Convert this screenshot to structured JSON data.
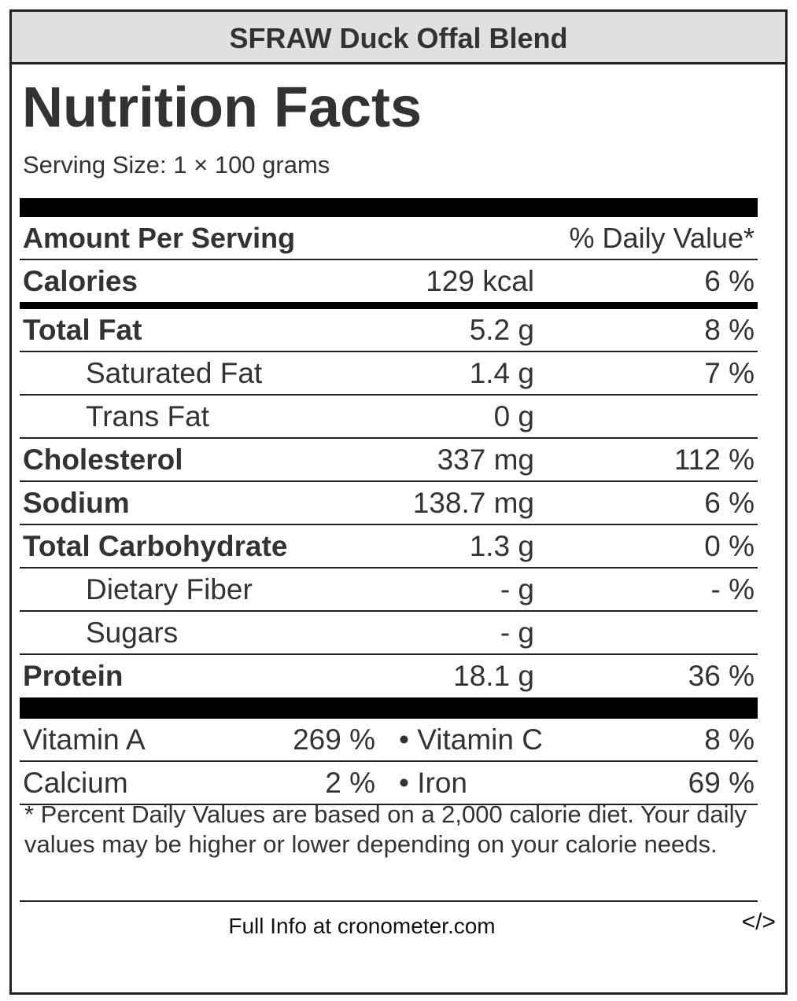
{
  "product_name": "SFRAW Duck Offal Blend",
  "title": "Nutrition Facts",
  "serving_size": "Serving Size: 1 × 100 grams",
  "header": {
    "amount_per_serving": "Amount Per Serving",
    "daily_value": "% Daily Value*"
  },
  "calories": {
    "label": "Calories",
    "amount": "129 kcal",
    "pct": "6 %"
  },
  "nutrients": [
    {
      "label": "Total Fat",
      "amount": "5.2 g",
      "pct": "8 %"
    },
    {
      "label": "Saturated Fat",
      "amount": "1.4 g",
      "pct": "7 %"
    },
    {
      "label": "Trans Fat",
      "amount": "0 g",
      "pct": ""
    },
    {
      "label": "Cholesterol",
      "amount": "337 mg",
      "pct": "112 %"
    },
    {
      "label": "Sodium",
      "amount": "138.7 mg",
      "pct": "6 %"
    },
    {
      "label": "Total Carbohydrate",
      "amount": "1.3 g",
      "pct": "0 %"
    },
    {
      "label": "Dietary Fiber",
      "amount": "- g",
      "pct": "- %"
    },
    {
      "label": "Sugars",
      "amount": "- g",
      "pct": ""
    },
    {
      "label": "Protein",
      "amount": "18.1 g",
      "pct": "36 %"
    }
  ],
  "vitamins": [
    {
      "left_label": "Vitamin A",
      "left_value": "269 %",
      "right_label": "• Vitamin C",
      "right_value": "8 %"
    },
    {
      "left_label": "Calcium",
      "left_value": "2 %",
      "right_label": "• Iron",
      "right_value": "69 %"
    }
  ],
  "footnote": "* Percent Daily Values are based on a 2,000 calorie diet. Your daily values may be higher or lower depending on your calorie needs.",
  "full_info": "Full Info at cronometer.com",
  "embed_icon": "</>"
}
